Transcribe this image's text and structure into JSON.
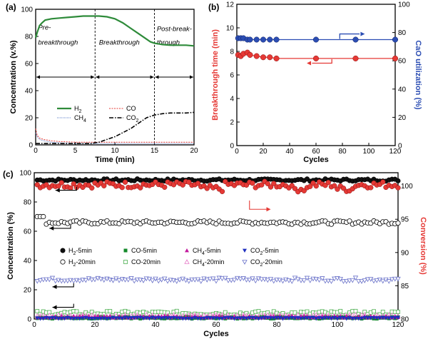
{
  "colors": {
    "h2": "#2e8b3a",
    "co": "#e53935",
    "ch4": "#5b7cc9",
    "co2": "#000000",
    "bt": "#e53935",
    "cao": "#2b4db3",
    "h2pts": "#000000",
    "co5": "#138a2a",
    "ch45": "#c2189c",
    "co25": "#1f2fbf",
    "co20": "#4caf50",
    "ch420": "#e57ac7",
    "co220": "#6a72c9",
    "conv": "#e53935"
  },
  "chart_data": [
    {
      "panel": "(a)",
      "type": "line",
      "xlabel": "Time (min)",
      "ylabel": "Concentration (v.%)",
      "xlim": [
        0,
        20
      ],
      "ylim": [
        0,
        100
      ],
      "xticks": [
        0,
        5,
        10,
        15,
        20
      ],
      "yticks": [
        0,
        20,
        40,
        60,
        80,
        100
      ],
      "region_lines": [
        7.5,
        15
      ],
      "regions": [
        {
          "line1": "Pre-",
          "line2": "breakthrough",
          "x": 0.3,
          "y1": 85,
          "y2": 74
        },
        {
          "line1": "Breakthrough",
          "line2": "",
          "x": 8.0,
          "y1": 74,
          "y2": null
        },
        {
          "line1": "Post-break-",
          "line2": "through",
          "x": 15.3,
          "y1": 84,
          "y2": 74
        }
      ],
      "legend": [
        {
          "text": "H",
          "sub": "2",
          "key": "h2"
        },
        {
          "text": "CH",
          "sub": "4",
          "key": "ch4"
        },
        {
          "text": "CO",
          "sub": "",
          "key": "co"
        },
        {
          "text": "CO",
          "sub": "2",
          "key": "co2"
        }
      ],
      "series": [
        {
          "name": "H2",
          "key": "h2",
          "x": [
            0,
            0.2,
            0.5,
            0.8,
            1.2,
            2,
            3,
            4,
            5,
            6,
            7,
            7.5,
            8,
            9,
            10,
            11,
            12,
            13,
            14,
            14.5,
            15,
            15.5,
            16,
            17,
            18,
            19,
            20
          ],
          "y": [
            79,
            83,
            88,
            90,
            92,
            93,
            93.5,
            94,
            94.5,
            95,
            95,
            95,
            95,
            94.5,
            93,
            90,
            86,
            82,
            78,
            76,
            75,
            74.5,
            74,
            73.5,
            73.5,
            73.5,
            73
          ]
        },
        {
          "name": "CO",
          "key": "co",
          "x": [
            0,
            0.2,
            0.5,
            1,
            1.5,
            2,
            3,
            5,
            7.5,
            10,
            12,
            15,
            17,
            20
          ],
          "y": [
            12,
            7,
            5,
            4,
            3.5,
            3,
            2.5,
            2,
            2,
            2,
            2,
            2,
            2,
            2
          ]
        },
        {
          "name": "CH4",
          "key": "ch4",
          "x": [
            0,
            0.2,
            0.5,
            1,
            1.5,
            2,
            3,
            5,
            7.5,
            10,
            15,
            20
          ],
          "y": [
            9,
            6,
            4,
            3,
            2.5,
            2,
            1.5,
            1,
            1,
            1,
            1,
            1
          ]
        },
        {
          "name": "CO2",
          "key": "co2",
          "x": [
            0,
            0.5,
            1,
            2,
            3,
            5,
            7,
            8,
            9,
            10,
            11,
            12,
            13,
            14,
            15,
            15.5,
            16,
            17,
            18,
            19,
            20
          ],
          "y": [
            1,
            1,
            1,
            1,
            1,
            1,
            1,
            2,
            4,
            6,
            9,
            12,
            16,
            20,
            22,
            22.5,
            23,
            23.5,
            23.5,
            23.5,
            24
          ]
        }
      ]
    },
    {
      "panel": "(b)",
      "type": "scatter",
      "xlabel": "Cycles",
      "ylabel": "Breakthrough time (min)",
      "y2label": "CaO utilization (%)",
      "xlim": [
        0,
        120
      ],
      "ylim": [
        0,
        12
      ],
      "y2lim": [
        0,
        100
      ],
      "xticks": [
        0,
        20,
        40,
        60,
        80,
        100,
        120
      ],
      "yticks": [
        0,
        2,
        4,
        6,
        8,
        10,
        12
      ],
      "y2ticks": [
        0,
        20,
        40,
        60,
        80,
        100
      ],
      "series": [
        {
          "name": "Breakthrough time",
          "key": "bt",
          "axis": "left",
          "x": [
            1,
            3,
            5,
            8,
            10,
            15,
            20,
            25,
            30,
            60,
            90,
            120
          ],
          "y": [
            7.7,
            7.6,
            7.8,
            7.9,
            7.7,
            7.6,
            7.5,
            7.5,
            7.4,
            7.4,
            7.4,
            7.4
          ]
        },
        {
          "name": "CaO utilization",
          "key": "cao",
          "axis": "right",
          "x": [
            1,
            3,
            5,
            8,
            10,
            15,
            20,
            25,
            30,
            60,
            90,
            120
          ],
          "y": [
            76,
            76,
            76,
            75,
            75,
            75,
            75,
            75,
            75,
            75,
            75,
            75
          ]
        }
      ]
    },
    {
      "panel": "(c)",
      "type": "scatter",
      "xlabel": "Cycles",
      "ylabel": "Concentration (%)",
      "y2label": "Conversion (%)",
      "xlim": [
        0,
        120
      ],
      "ylim": [
        0,
        100
      ],
      "y2lim": [
        80,
        102
      ],
      "xticks": [
        0,
        20,
        40,
        60,
        80,
        100,
        120
      ],
      "yticks": [
        0,
        20,
        40,
        60,
        80,
        100
      ],
      "y2ticks": [
        80,
        85,
        90,
        95,
        100
      ],
      "legend": [
        {
          "text": "H",
          "sub": "2",
          "suffix": "-5min",
          "key": "h2pts",
          "marker": "hexdot"
        },
        {
          "text": "CO-5min",
          "sub": "",
          "suffix": "",
          "key": "co5",
          "marker": "square"
        },
        {
          "text": "CH",
          "sub": "4",
          "suffix": "-5min",
          "key": "ch45",
          "marker": "triangle"
        },
        {
          "text": "CO",
          "sub": "2",
          "suffix": "-5min",
          "key": "co25",
          "marker": "invtri"
        },
        {
          "text": "H",
          "sub": "2",
          "suffix": "-20min",
          "key": "h2pts",
          "marker": "circleOpen"
        },
        {
          "text": "CO-20min",
          "sub": "",
          "suffix": "",
          "key": "co20",
          "marker": "squareOpen"
        },
        {
          "text": "CH",
          "sub": "4",
          "suffix": "-20min",
          "key": "ch420",
          "marker": "triangleOpen"
        },
        {
          "text": "CO",
          "sub": "2",
          "suffix": "-20min",
          "key": "co220",
          "marker": "invtriOpen"
        }
      ],
      "series": [
        {
          "name": "H2-5min",
          "key": "h2pts",
          "marker": "hexdot",
          "base": 95,
          "amp": 0.8,
          "x": [
            1,
            120
          ]
        },
        {
          "name": "Conversion",
          "key": "conv",
          "marker": "circle",
          "axis": "right",
          "base": 100.2,
          "amp": 0.5,
          "x": [
            1,
            120
          ]
        },
        {
          "name": "H2-20min",
          "key": "h2pts",
          "marker": "circleOpen",
          "base": 66,
          "amp": 1.2,
          "x": [
            1,
            120
          ]
        },
        {
          "name": "CO2-20min",
          "key": "co220",
          "marker": "invtriOpen",
          "base": 27,
          "amp": 1.2,
          "x": [
            1,
            120
          ]
        },
        {
          "name": "CO-20min",
          "key": "co20",
          "marker": "squareOpen",
          "base": 4,
          "amp": 1.5,
          "x": [
            1,
            120
          ]
        },
        {
          "name": "CH4-20min",
          "key": "ch420",
          "marker": "triangleOpen",
          "base": 2.2,
          "amp": 0.8,
          "x": [
            1,
            120
          ]
        },
        {
          "name": "CO-5min",
          "key": "co5",
          "marker": "square",
          "base": 0.8,
          "amp": 0.6,
          "x": [
            1,
            120
          ]
        },
        {
          "name": "CH4-5min",
          "key": "ch45",
          "marker": "triangle",
          "base": 1.5,
          "amp": 0.6,
          "x": [
            1,
            120
          ]
        },
        {
          "name": "CO2-5min",
          "key": "co25",
          "marker": "invtri",
          "base": 0.6,
          "amp": 0.4,
          "x": [
            1,
            120
          ]
        }
      ]
    }
  ]
}
